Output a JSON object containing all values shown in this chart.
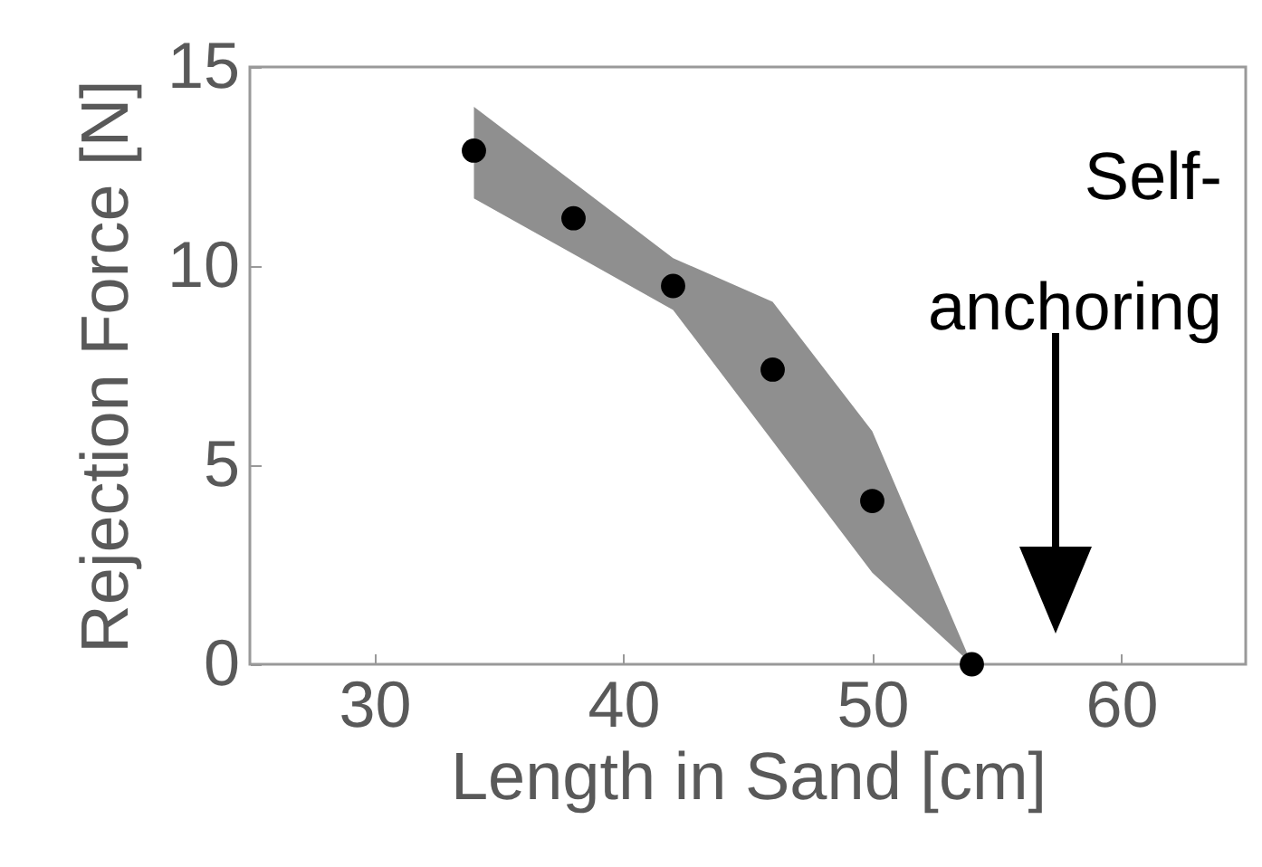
{
  "chart_data": {
    "type": "scatter",
    "xlabel": "Length in Sand [cm]",
    "ylabel": "Rejection Force [N]",
    "x": [
      34,
      38,
      42,
      46,
      50,
      54
    ],
    "series": [
      {
        "color": "#000000",
        "values": [
          12.9,
          11.2,
          9.5,
          7.4,
          4.1,
          0
        ],
        "lower": [
          11.7,
          10.3,
          8.9,
          5.6,
          2.3,
          0
        ],
        "upper": [
          14.0,
          12.1,
          10.2,
          9.1,
          5.85,
          0
        ]
      }
    ],
    "xlim": [
      25,
      65
    ],
    "xticks": [
      30,
      40,
      50,
      60
    ],
    "ylim": [
      0,
      15
    ],
    "yticks": [
      0,
      5,
      10,
      15
    ],
    "annotations": [
      "Self-\nanchoring"
    ],
    "marker": "circle",
    "grid": false
  }
}
